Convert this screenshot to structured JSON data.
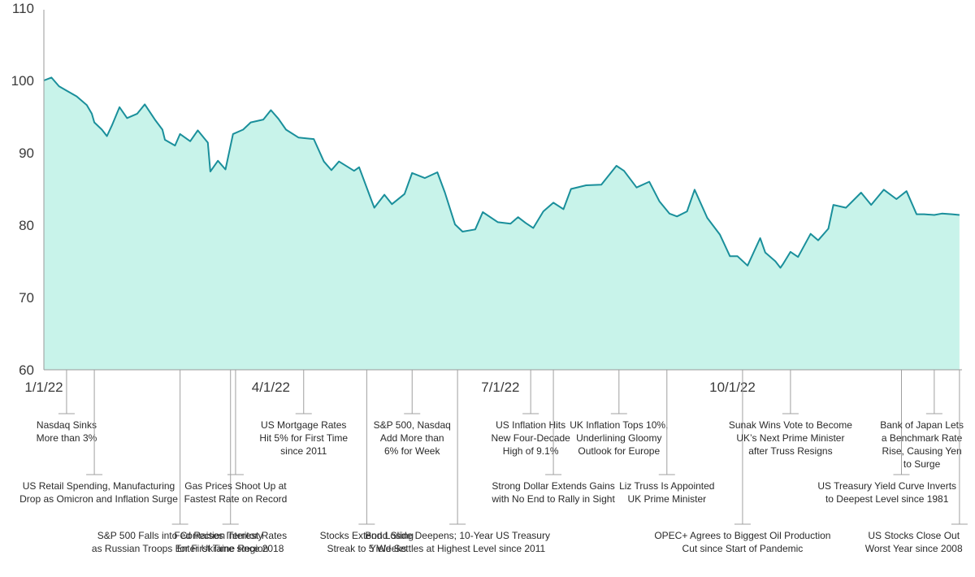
{
  "chart_data": {
    "type": "area",
    "title": "",
    "xlabel": "",
    "ylabel": "",
    "ylim": [
      60,
      110
    ],
    "yticks": [
      60,
      70,
      80,
      90,
      100,
      110
    ],
    "xtick_labels": [
      {
        "date": "2022-01-01",
        "label": "1/1/22"
      },
      {
        "date": "2022-04-01",
        "label": "4/1/22"
      },
      {
        "date": "2022-07-01",
        "label": "7/1/22"
      },
      {
        "date": "2022-10-01",
        "label": "10/1/22"
      }
    ],
    "xrange": [
      "2022-01-01",
      "2022-12-31"
    ],
    "grid": false,
    "colors": {
      "line": "#1a8f9b",
      "fill": "#c8f3ea",
      "axis": "#9a9a9a"
    },
    "series": [
      {
        "x": [
          "2022-01-01",
          "2022-01-04",
          "2022-01-07",
          "2022-01-10",
          "2022-01-14",
          "2022-01-18",
          "2022-01-20",
          "2022-01-21",
          "2022-01-24",
          "2022-01-26",
          "2022-01-28",
          "2022-01-31",
          "2022-02-03",
          "2022-02-07",
          "2022-02-10",
          "2022-02-14",
          "2022-02-17",
          "2022-02-18",
          "2022-02-22",
          "2022-02-24",
          "2022-02-28",
          "2022-03-03",
          "2022-03-07",
          "2022-03-08",
          "2022-03-11",
          "2022-03-14",
          "2022-03-17",
          "2022-03-21",
          "2022-03-24",
          "2022-03-29",
          "2022-04-01",
          "2022-04-04",
          "2022-04-07",
          "2022-04-12",
          "2022-04-18",
          "2022-04-22",
          "2022-04-25",
          "2022-04-28",
          "2022-05-04",
          "2022-05-06",
          "2022-05-11",
          "2022-05-12",
          "2022-05-16",
          "2022-05-19",
          "2022-05-24",
          "2022-05-27",
          "2022-06-01",
          "2022-06-06",
          "2022-06-09",
          "2022-06-13",
          "2022-06-16",
          "2022-06-21",
          "2022-06-24",
          "2022-06-30",
          "2022-07-05",
          "2022-07-08",
          "2022-07-11",
          "2022-07-14",
          "2022-07-18",
          "2022-07-22",
          "2022-07-26",
          "2022-07-29",
          "2022-08-04",
          "2022-08-10",
          "2022-08-16",
          "2022-08-19",
          "2022-08-24",
          "2022-08-29",
          "2022-09-02",
          "2022-09-06",
          "2022-09-09",
          "2022-09-13",
          "2022-09-16",
          "2022-09-21",
          "2022-09-26",
          "2022-09-30",
          "2022-10-03",
          "2022-10-07",
          "2022-10-12",
          "2022-10-14",
          "2022-10-18",
          "2022-10-20",
          "2022-10-21",
          "2022-10-24",
          "2022-10-27",
          "2022-11-01",
          "2022-11-04",
          "2022-11-08",
          "2022-11-10",
          "2022-11-15",
          "2022-11-21",
          "2022-11-25",
          "2022-11-30",
          "2022-12-05",
          "2022-12-09",
          "2022-12-13",
          "2022-12-16",
          "2022-12-20",
          "2022-12-23",
          "2022-12-27",
          "2022-12-30"
        ],
        "y": [
          100,
          100.4,
          99.2,
          98.6,
          97.8,
          96.6,
          95.4,
          94.2,
          93.2,
          92.3,
          93.8,
          96.3,
          94.8,
          95.4,
          96.7,
          94.6,
          93.2,
          91.8,
          91.0,
          92.6,
          91.6,
          93.1,
          91.4,
          87.4,
          88.9,
          87.7,
          92.6,
          93.2,
          94.2,
          94.6,
          95.9,
          94.7,
          93.2,
          92.1,
          91.9,
          88.8,
          87.6,
          88.8,
          87.5,
          88.0,
          83.3,
          82.4,
          84.2,
          82.9,
          84.3,
          87.2,
          86.5,
          87.3,
          84.5,
          80.1,
          79.1,
          79.4,
          81.8,
          80.4,
          80.2,
          81.1,
          80.3,
          79.6,
          81.9,
          83.1,
          82.2,
          85.0,
          85.5,
          85.6,
          88.2,
          87.5,
          85.2,
          86.0,
          83.3,
          81.6,
          81.2,
          81.9,
          84.9,
          81.0,
          78.7,
          75.7,
          75.7,
          74.4,
          78.2,
          76.2,
          75.0,
          74.1,
          74.6,
          76.3,
          75.6,
          78.8,
          77.9,
          79.5,
          82.8,
          82.4,
          84.5,
          82.8,
          84.9,
          83.6,
          84.7,
          81.5,
          81.5,
          81.4,
          81.6,
          81.5,
          81.4
        ]
      }
    ],
    "annotations": [
      {
        "date": "2022-01-10",
        "row": 1,
        "lines": [
          "Nasdaq Sinks",
          "More than 3%"
        ]
      },
      {
        "date": "2022-01-21",
        "row": 2,
        "lines": [
          "US Retail Spending, Manufacturing",
          "Drop as Omicron and Inflation Surge"
        ]
      },
      {
        "date": "2022-02-24",
        "row": 3,
        "lines": [
          "S&P 500 Falls into Correction Territory",
          "as Russian Troops Enter Ukraine Region"
        ]
      },
      {
        "date": "2022-03-16",
        "row": 3,
        "lines": [
          "Fed Raises Interest Rates",
          "for First Time since 2018"
        ]
      },
      {
        "date": "2022-03-18",
        "row": 2,
        "lines": [
          "Gas Prices Shoot Up at",
          "Fastest Rate on Record"
        ]
      },
      {
        "date": "2022-04-14",
        "row": 1,
        "lines": [
          "US Mortgage Rates",
          "Hit 5% for First Time",
          "since 2011"
        ]
      },
      {
        "date": "2022-05-09",
        "row": 3,
        "lines": [
          "Stocks Extend Losing",
          "Streak to 5 Weeks"
        ]
      },
      {
        "date": "2022-05-27",
        "row": 1,
        "lines": [
          "S&P 500, Nasdaq",
          "Add More than",
          "6% for Week"
        ]
      },
      {
        "date": "2022-06-14",
        "row": 3,
        "lines": [
          "Bond Slide Deepens; 10-Year US Treasury",
          "Yield Settles at Highest Level since 2011"
        ]
      },
      {
        "date": "2022-07-13",
        "row": 1,
        "lines": [
          "US Inflation Hits",
          "New Four-Decade",
          "High of 9.1%"
        ]
      },
      {
        "date": "2022-07-22",
        "row": 2,
        "lines": [
          "Strong Dollar Extends Gains",
          "with No End to Rally in Sight"
        ]
      },
      {
        "date": "2022-08-17",
        "row": 1,
        "lines": [
          "UK Inflation Tops 10%,",
          "Underlining Gloomy",
          "Outlook for Europe"
        ]
      },
      {
        "date": "2022-09-05",
        "row": 2,
        "lines": [
          "Liz Truss Is Appointed",
          "UK Prime Minister"
        ]
      },
      {
        "date": "2022-10-05",
        "row": 3,
        "lines": [
          "OPEC+ Agrees to Biggest Oil Production",
          "Cut since Start of Pandemic"
        ]
      },
      {
        "date": "2022-10-24",
        "row": 1,
        "lines": [
          "Sunak Wins Vote to Become",
          "UK’s Next Prime Minister",
          "after Truss Resigns"
        ]
      },
      {
        "date": "2022-12-07",
        "row": 2,
        "lines": [
          "US Treasury Yield Curve Inverts",
          "to Deepest Level since 1981"
        ]
      },
      {
        "date": "2022-12-20",
        "row": 1,
        "lines": [
          "Bank of Japan Lets",
          "a Benchmark Rate",
          "Rise, Causing Yen",
          "to Surge"
        ]
      },
      {
        "date": "2022-12-30",
        "row": 3,
        "lines": [
          "US Stocks Close Out",
          "Worst Year since 2008"
        ]
      }
    ]
  }
}
